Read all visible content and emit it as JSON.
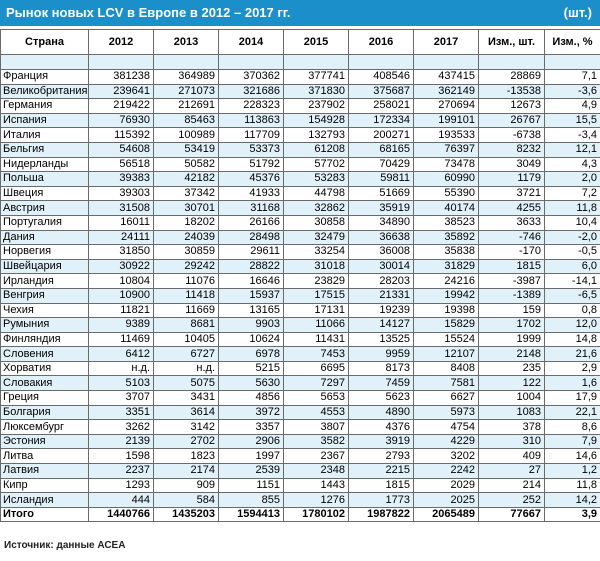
{
  "title": "Рынок новых LCV в Европе в 2012 – 2017 гг.",
  "unit": "(шт.)",
  "headers": [
    "Страна",
    "2012",
    "2013",
    "2014",
    "2015",
    "2016",
    "2017",
    "Изм., шт.",
    "Изм., %"
  ],
  "rows": [
    [
      "Франция",
      "381238",
      "364989",
      "370362",
      "377741",
      "408546",
      "437415",
      "28869",
      "7,1"
    ],
    [
      "Великобритания",
      "239641",
      "271073",
      "321686",
      "371830",
      "375687",
      "362149",
      "-13538",
      "-3,6"
    ],
    [
      "Германия",
      "219422",
      "212691",
      "228323",
      "237902",
      "258021",
      "270694",
      "12673",
      "4,9"
    ],
    [
      "Испания",
      "76930",
      "85463",
      "113863",
      "154928",
      "172334",
      "199101",
      "26767",
      "15,5"
    ],
    [
      "Италия",
      "115392",
      "100989",
      "117709",
      "132793",
      "200271",
      "193533",
      "-6738",
      "-3,4"
    ],
    [
      "Бельгия",
      "54608",
      "53419",
      "53373",
      "61208",
      "68165",
      "76397",
      "8232",
      "12,1"
    ],
    [
      "Нидерланды",
      "56518",
      "50582",
      "51792",
      "57702",
      "70429",
      "73478",
      "3049",
      "4,3"
    ],
    [
      "Польша",
      "39383",
      "42182",
      "45376",
      "53283",
      "59811",
      "60990",
      "1179",
      "2,0"
    ],
    [
      "Швеция",
      "39303",
      "37342",
      "41933",
      "44798",
      "51669",
      "55390",
      "3721",
      "7,2"
    ],
    [
      "Австрия",
      "31508",
      "30701",
      "31168",
      "32862",
      "35919",
      "40174",
      "4255",
      "11,8"
    ],
    [
      "Португалия",
      "16011",
      "18202",
      "26166",
      "30858",
      "34890",
      "38523",
      "3633",
      "10,4"
    ],
    [
      "Дания",
      "24111",
      "24039",
      "28498",
      "32479",
      "36638",
      "35892",
      "-746",
      "-2,0"
    ],
    [
      "Норвегия",
      "31850",
      "30859",
      "29611",
      "33254",
      "36008",
      "35838",
      "-170",
      "-0,5"
    ],
    [
      "Швейцария",
      "30922",
      "29242",
      "28822",
      "31018",
      "30014",
      "31829",
      "1815",
      "6,0"
    ],
    [
      "Ирландия",
      "10804",
      "11076",
      "16646",
      "23829",
      "28203",
      "24216",
      "-3987",
      "-14,1"
    ],
    [
      "Венгрия",
      "10900",
      "11418",
      "15937",
      "17515",
      "21331",
      "19942",
      "-1389",
      "-6,5"
    ],
    [
      "Чехия",
      "11821",
      "11669",
      "13165",
      "17131",
      "19239",
      "19398",
      "159",
      "0,8"
    ],
    [
      "Румыния",
      "9389",
      "8681",
      "9903",
      "11066",
      "14127",
      "15829",
      "1702",
      "12,0"
    ],
    [
      "Финляндия",
      "11469",
      "10405",
      "10624",
      "11431",
      "13525",
      "15524",
      "1999",
      "14,8"
    ],
    [
      "Словения",
      "6412",
      "6727",
      "6978",
      "7453",
      "9959",
      "12107",
      "2148",
      "21,6"
    ],
    [
      "Хорватия",
      "н.д.",
      "н.д.",
      "5215",
      "6695",
      "8173",
      "8408",
      "235",
      "2,9"
    ],
    [
      "Словакия",
      "5103",
      "5075",
      "5630",
      "7297",
      "7459",
      "7581",
      "122",
      "1,6"
    ],
    [
      "Греция",
      "3707",
      "3431",
      "4856",
      "5653",
      "5623",
      "6627",
      "1004",
      "17,9"
    ],
    [
      "Болгария",
      "3351",
      "3614",
      "3972",
      "4553",
      "4890",
      "5973",
      "1083",
      "22,1"
    ],
    [
      "Люксембург",
      "3262",
      "3142",
      "3357",
      "3807",
      "4376",
      "4754",
      "378",
      "8,6"
    ],
    [
      "Эстония",
      "2139",
      "2702",
      "2906",
      "3582",
      "3919",
      "4229",
      "310",
      "7,9"
    ],
    [
      "Литва",
      "1598",
      "1823",
      "1997",
      "2367",
      "2793",
      "3202",
      "409",
      "14,6"
    ],
    [
      "Латвия",
      "2237",
      "2174",
      "2539",
      "2348",
      "2215",
      "2242",
      "27",
      "1,2"
    ],
    [
      "Кипр",
      "1293",
      "909",
      "1151",
      "1443",
      "1815",
      "2029",
      "214",
      "11,8"
    ],
    [
      "Исландия",
      "444",
      "584",
      "855",
      "1276",
      "1773",
      "2025",
      "252",
      "14,2"
    ]
  ],
  "total": [
    "Итого",
    "1440766",
    "1435203",
    "1594413",
    "1780102",
    "1987822",
    "2065489",
    "77667",
    "3,9"
  ],
  "source": "Источник: данные АСЕА"
}
